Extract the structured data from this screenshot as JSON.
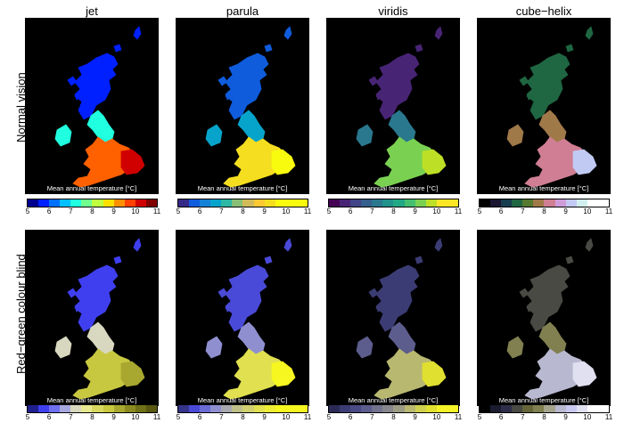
{
  "chart_data": {
    "type": "heatmap",
    "column_titles": [
      "jet",
      "parula",
      "viridis",
      "cube−helix"
    ],
    "row_labels": [
      "Normal vision",
      "Red−green colour blind"
    ],
    "colorbar_label": "Mean annual temperature  [°C]",
    "colorbar_range": [
      5,
      11
    ],
    "colorbar_ticks": [
      5,
      6,
      7,
      8,
      9,
      10,
      11
    ],
    "colormaps": {
      "normal": [
        [
          "#00008f",
          "#0020ff",
          "#0070ff",
          "#00c0ff",
          "#20ffdf",
          "#70ff8f",
          "#c0ff40",
          "#ffe000",
          "#ff9000",
          "#ff4000",
          "#d00000",
          "#800000"
        ],
        [
          "#352a87",
          "#0f5cdd",
          "#1481d6",
          "#06a4ca",
          "#2eb7a4",
          "#87bf77",
          "#d1bb59",
          "#fec832",
          "#f5de1f",
          "#f9fb0e",
          "#f9fb0e",
          "#f9fb0e"
        ],
        [
          "#440154",
          "#482475",
          "#414487",
          "#355f8d",
          "#2a788e",
          "#21918c",
          "#22a884",
          "#44bf70",
          "#7ad151",
          "#bddf26",
          "#fde725",
          "#fde725"
        ],
        [
          "#000000",
          "#1a1530",
          "#163d4e",
          "#1f6642",
          "#54792f",
          "#a07949",
          "#d07e93",
          "#cf9cda",
          "#c1caf3",
          "#d2eeef",
          "#ffffff",
          "#ffffff"
        ]
      ],
      "cvd": [
        [
          "#1f1f8f",
          "#3f3ff0",
          "#6f6ff0",
          "#a7a7e0",
          "#d8d8c0",
          "#e8e890",
          "#d8d860",
          "#c8c840",
          "#a8a830",
          "#8a8a20",
          "#707018",
          "#585810"
        ],
        [
          "#34348a",
          "#4a4ad8",
          "#6b6bd6",
          "#8f8fd0",
          "#a8a8b0",
          "#bfbf8a",
          "#d0d070",
          "#e0e050",
          "#ecec35",
          "#f6f620",
          "#f6f620",
          "#f6f620"
        ],
        [
          "#2a2a55",
          "#3c3c75",
          "#4a4a87",
          "#5c5c8d",
          "#72728e",
          "#86868c",
          "#9c9c84",
          "#b8b870",
          "#d0d050",
          "#e0e030",
          "#f4f428",
          "#f4f428"
        ],
        [
          "#000000",
          "#1b1b30",
          "#2e2e4a",
          "#4a4a44",
          "#66663a",
          "#808050",
          "#a4a48e",
          "#b8b8d0",
          "#c8c8f0",
          "#e0e0f0",
          "#ffffff",
          "#ffffff"
        ]
      ]
    },
    "map_fill": {
      "normal": [
        {
          "north": "#0020ff",
          "mid": "#20ffdf",
          "south": "#ff6000",
          "se": "#d00000"
        },
        {
          "north": "#0f5cdd",
          "mid": "#06a4ca",
          "south": "#f5de1f",
          "se": "#f9fb0e"
        },
        {
          "north": "#482475",
          "mid": "#2a788e",
          "south": "#7ad151",
          "se": "#bddf26"
        },
        {
          "north": "#1f6642",
          "mid": "#a07949",
          "south": "#d07e93",
          "se": "#c1caf3"
        }
      ],
      "cvd": [
        {
          "north": "#3f3ff0",
          "mid": "#d8d8c0",
          "south": "#c8c840",
          "se": "#a8a830"
        },
        {
          "north": "#4a4ad8",
          "mid": "#8f8fd0",
          "south": "#e0e050",
          "se": "#f6f620"
        },
        {
          "north": "#3c3c75",
          "mid": "#5c5c8d",
          "south": "#b8b870",
          "se": "#e0e030"
        },
        {
          "north": "#4a4a44",
          "mid": "#808050",
          "south": "#b8b8d0",
          "se": "#e0e0f0"
        }
      ]
    }
  }
}
